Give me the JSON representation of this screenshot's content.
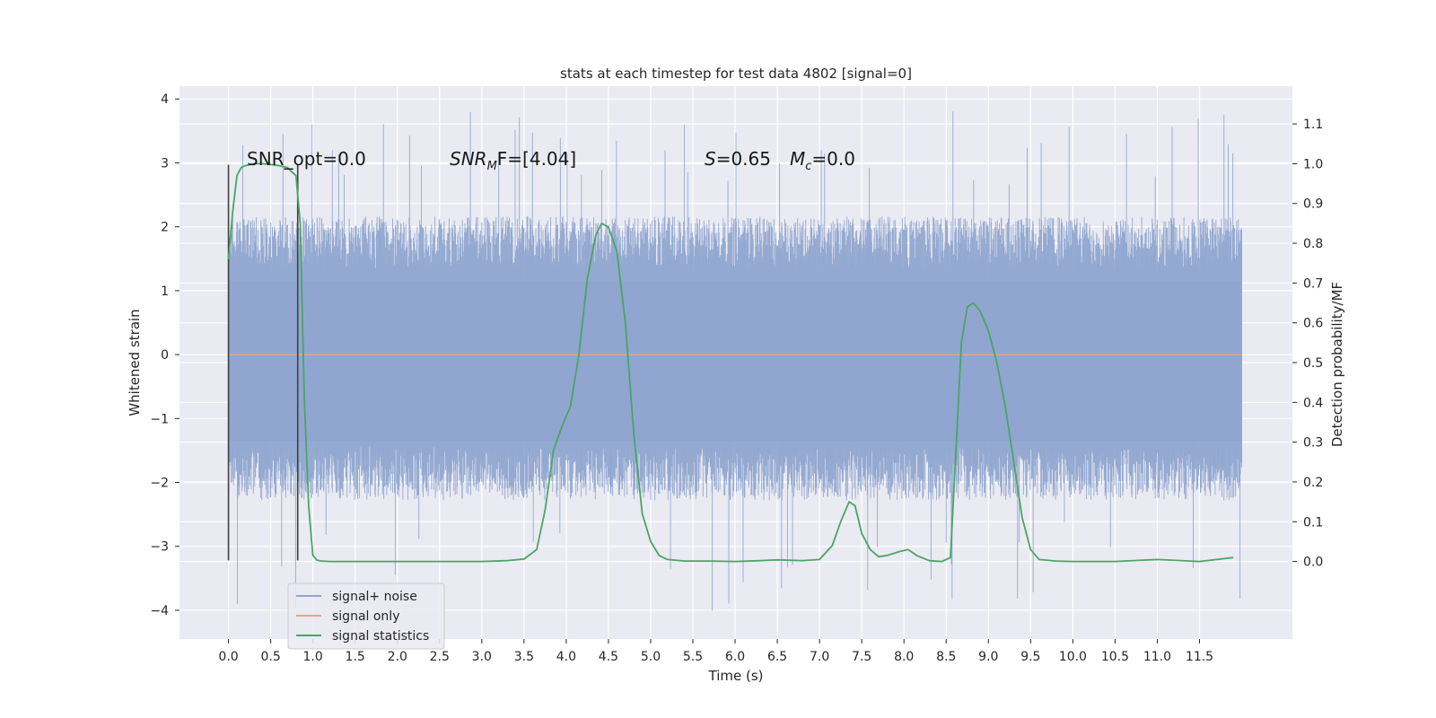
{
  "chart_data": {
    "type": "line",
    "title": "stats at each timestep for test data 4802 [signal=0]",
    "xlabel": "Time (s)",
    "ylabel": "Whitened strain",
    "ylabel_right": "Detection probability/MF",
    "xlim": [
      -0.58,
      12.6
    ],
    "ylim": [
      -4.45,
      4.2
    ],
    "ylim_right": [
      -0.195,
      1.195
    ],
    "xticks": [
      "0.0",
      "0.5",
      "1.0",
      "1.5",
      "2.0",
      "2.5",
      "3.0",
      "3.5",
      "4.0",
      "4.5",
      "5.0",
      "5.5",
      "6.0",
      "6.5",
      "7.0",
      "7.5",
      "8.0",
      "8.5",
      "9.0",
      "9.5",
      "10.0",
      "10.5",
      "11.0",
      "11.5"
    ],
    "yticks_left": [
      "4",
      "3",
      "2",
      "1",
      "0",
      "−1",
      "−2",
      "−3",
      "−4"
    ],
    "yticks_right": [
      "1.1",
      "1.0",
      "0.9",
      "0.8",
      "0.7",
      "0.6",
      "0.5",
      "0.4",
      "0.3",
      "0.2",
      "0.1",
      "0.0"
    ],
    "grid": true,
    "legend_position": "bottom-left",
    "annotations": {
      "snr_opt": "SNR_opt=0.0",
      "snr_mf_label": "SNR",
      "snr_mf_sub": "M",
      "snr_mf_rest": "F=[4.04]",
      "s_label": "S",
      "s_value": "=0.65",
      "mc_label": "M",
      "mc_sub": "c",
      "mc_value": "=0.0"
    },
    "vertical_lines": [
      0.0,
      0.82
    ],
    "noise_band": {
      "duration": 12.0,
      "typical_peak": 1.8,
      "typical_trough": -1.9,
      "max": 3.83,
      "min": -4.08
    },
    "series": [
      {
        "name": "signal+ noise",
        "color": "#8fa5cf",
        "axis": "left",
        "kind": "noise"
      },
      {
        "name": "signal only",
        "color": "#e8a383",
        "axis": "left",
        "x": [
          0.0,
          12.0
        ],
        "y": [
          0.0,
          0.0
        ]
      },
      {
        "name": "signal statistics",
        "color": "#4aa564",
        "axis": "right",
        "x": [
          0.0,
          0.05,
          0.1,
          0.15,
          0.2,
          0.3,
          0.4,
          0.5,
          0.6,
          0.7,
          0.75,
          0.8,
          0.85,
          0.9,
          0.95,
          1.0,
          1.05,
          1.1,
          1.2,
          1.5,
          2.0,
          2.5,
          3.0,
          3.3,
          3.5,
          3.65,
          3.75,
          3.85,
          3.95,
          4.05,
          4.15,
          4.25,
          4.35,
          4.42,
          4.5,
          4.6,
          4.7,
          4.8,
          4.9,
          5.0,
          5.1,
          5.2,
          5.4,
          5.7,
          6.0,
          6.3,
          6.5,
          6.8,
          7.0,
          7.15,
          7.25,
          7.35,
          7.42,
          7.5,
          7.6,
          7.7,
          7.8,
          7.95,
          8.05,
          8.15,
          8.3,
          8.45,
          8.55,
          8.62,
          8.68,
          8.75,
          8.82,
          8.9,
          9.0,
          9.1,
          9.2,
          9.3,
          9.4,
          9.5,
          9.6,
          9.8,
          10.0,
          10.5,
          11.0,
          11.5,
          11.9
        ],
        "y": [
          0.76,
          0.88,
          0.97,
          0.99,
          0.995,
          1.0,
          1.0,
          0.998,
          0.995,
          0.99,
          0.98,
          0.97,
          0.85,
          0.4,
          0.14,
          0.015,
          0.003,
          0.001,
          0.0,
          0.0,
          0.0,
          0.0,
          0.0,
          0.002,
          0.006,
          0.03,
          0.13,
          0.28,
          0.34,
          0.39,
          0.52,
          0.71,
          0.82,
          0.85,
          0.84,
          0.78,
          0.6,
          0.32,
          0.12,
          0.05,
          0.015,
          0.005,
          0.001,
          0.001,
          0.0,
          0.002,
          0.004,
          0.002,
          0.005,
          0.04,
          0.1,
          0.15,
          0.14,
          0.07,
          0.03,
          0.012,
          0.015,
          0.025,
          0.03,
          0.015,
          0.002,
          0.0,
          0.01,
          0.3,
          0.55,
          0.64,
          0.65,
          0.63,
          0.58,
          0.5,
          0.39,
          0.25,
          0.11,
          0.03,
          0.005,
          0.001,
          0.0,
          0.0,
          0.005,
          0.0,
          0.01
        ]
      }
    ]
  }
}
